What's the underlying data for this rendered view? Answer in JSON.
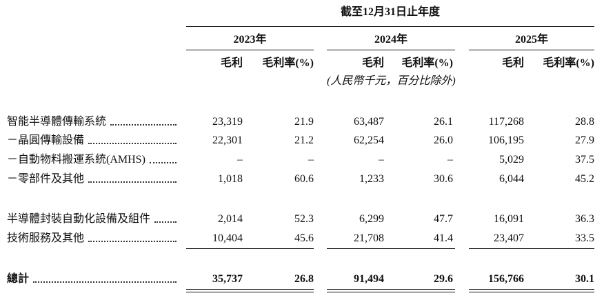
{
  "table": {
    "caption": "截至12月31日止年度",
    "years": [
      "2023年",
      "2024年",
      "2025年"
    ],
    "column_headers": [
      "毛利",
      "毛利率(%)",
      "毛利",
      "毛利率(%)",
      "毛利",
      "毛利率(%)"
    ],
    "unit_note": "(人民幣千元，百分比除外)",
    "rows": [
      {
        "label": "智能半導體傳輸系統",
        "cells": [
          "23,319",
          "21.9",
          "63,487",
          "26.1",
          "117,268",
          "28.8"
        ]
      },
      {
        "label": "－晶圓傳輸設備",
        "cells": [
          "22,301",
          "21.2",
          "62,254",
          "26.0",
          "106,195",
          "27.9"
        ]
      },
      {
        "label": "－自動物料搬運系統(AMHS)",
        "cells": [
          "–",
          "–",
          "–",
          "–",
          "5,029",
          "37.5"
        ]
      },
      {
        "label": "－零部件及其他",
        "cells": [
          "1,018",
          "60.6",
          "1,233",
          "30.6",
          "6,044",
          "45.2"
        ]
      },
      {
        "label": "半導體封裝自動化設備及組件",
        "cells": [
          "2,014",
          "52.3",
          "6,299",
          "47.7",
          "16,091",
          "36.3"
        ]
      },
      {
        "label": "技術服務及其他",
        "cells": [
          "10,404",
          "45.6",
          "21,708",
          "41.4",
          "23,407",
          "33.5"
        ]
      },
      {
        "label": "總計",
        "cells": [
          "35,737",
          "26.8",
          "91,494",
          "29.6",
          "156,766",
          "30.1"
        ]
      }
    ]
  }
}
